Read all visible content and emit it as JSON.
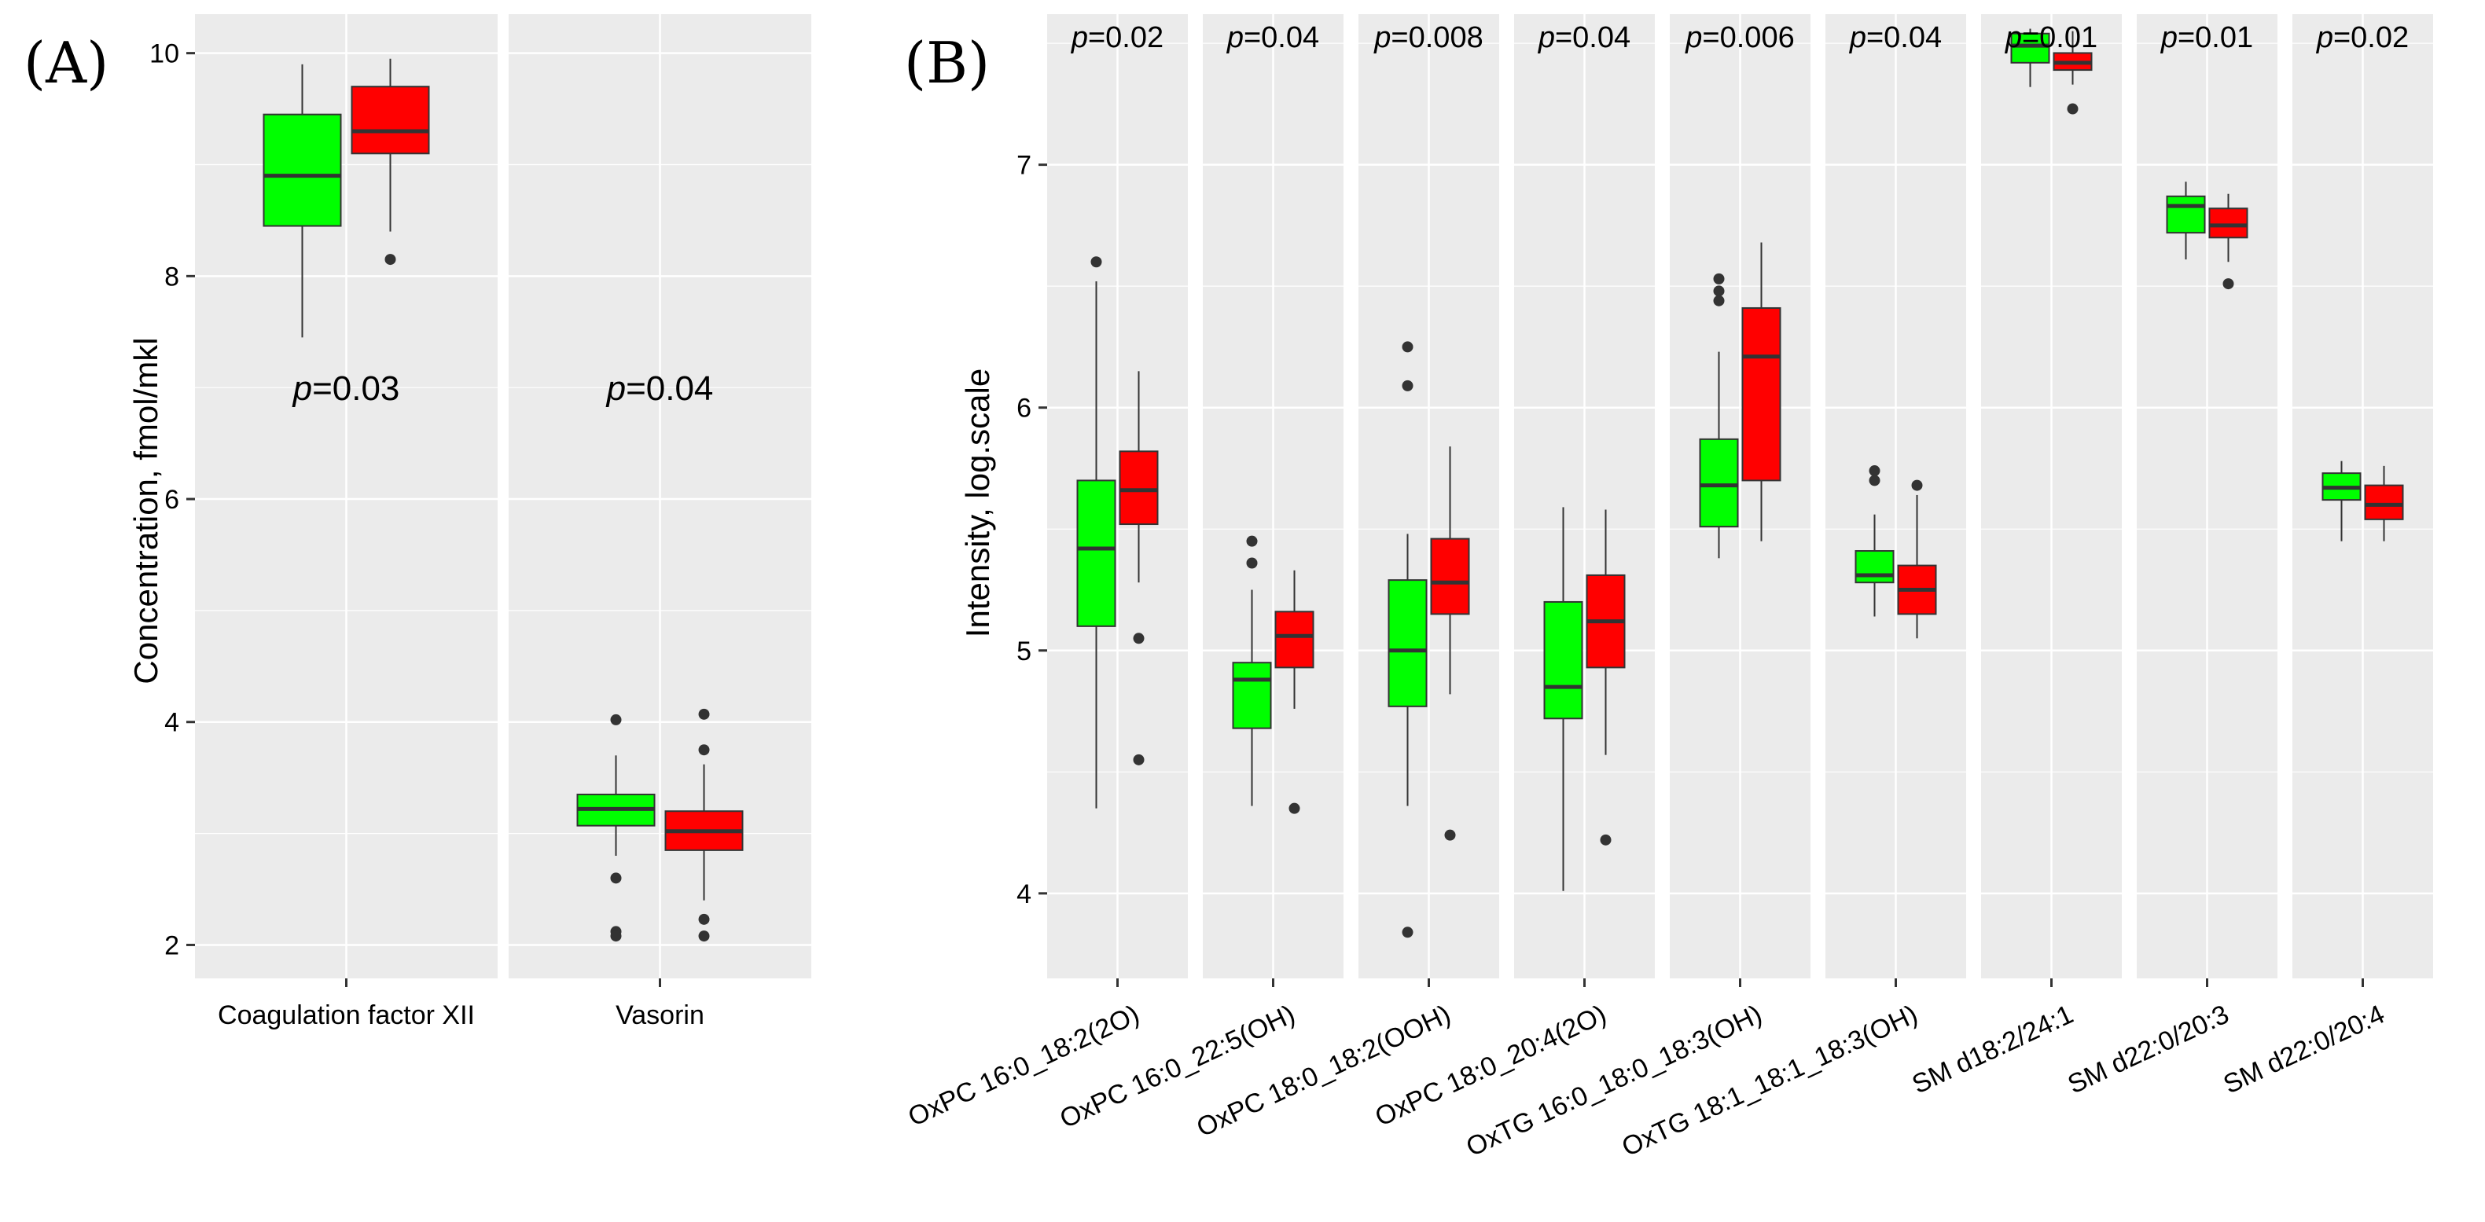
{
  "colors": {
    "panel_bg": "#EBEBEB",
    "grid": "#FFFFFF",
    "group1_fill": "#00FF00",
    "group2_fill": "#FF0000",
    "outline": "#333333"
  },
  "chart_data": [
    {
      "type": "boxplot",
      "panel_label": "(A)",
      "ylabel": "Concentration, fmol/mkl",
      "ylim": [
        1.7,
        10.35
      ],
      "yticks": [
        2,
        4,
        6,
        8,
        10
      ],
      "tick_labels": [
        "2",
        "4",
        "6",
        "8",
        "10"
      ],
      "grid": true,
      "facets": [
        {
          "category": "Coagulation factor XII",
          "p_label": "p",
          "p_value": "=0.03",
          "p_y": 7.0,
          "boxes": [
            {
              "color": "green",
              "lower_whisker": 7.45,
              "q1": 8.45,
              "median": 8.9,
              "q3": 9.45,
              "upper_whisker": 9.9,
              "outliers": []
            },
            {
              "color": "red",
              "lower_whisker": 8.4,
              "q1": 9.1,
              "median": 9.3,
              "q3": 9.7,
              "upper_whisker": 9.95,
              "outliers": [
                8.15
              ]
            }
          ]
        },
        {
          "category": "Vasorin",
          "p_label": "p",
          "p_value": "=0.04",
          "p_y": 7.0,
          "boxes": [
            {
              "color": "green",
              "lower_whisker": 2.8,
              "q1": 3.07,
              "median": 3.22,
              "q3": 3.35,
              "upper_whisker": 3.7,
              "outliers": [
                4.02,
                2.6,
                2.12,
                2.08
              ]
            },
            {
              "color": "red",
              "lower_whisker": 2.4,
              "q1": 2.85,
              "median": 3.02,
              "q3": 3.2,
              "upper_whisker": 3.62,
              "outliers": [
                4.07,
                3.75,
                2.23,
                2.08
              ]
            }
          ]
        }
      ]
    },
    {
      "type": "boxplot",
      "panel_label": "(B)",
      "ylabel": "Intensity, log.scale",
      "ylim": [
        3.65,
        7.62
      ],
      "yticks": [
        4,
        5,
        6,
        7
      ],
      "tick_labels": [
        "4",
        "5",
        "6",
        "7"
      ],
      "grid": true,
      "facets": [
        {
          "category": "OxPC 16:0_18:2(2O)",
          "p_label": "p",
          "p_value": "=0.02",
          "boxes": [
            {
              "color": "green",
              "lower_whisker": 4.35,
              "q1": 5.1,
              "median": 5.42,
              "q3": 5.7,
              "upper_whisker": 6.52,
              "outliers": [
                6.6
              ]
            },
            {
              "color": "red",
              "lower_whisker": 5.28,
              "q1": 5.52,
              "median": 5.66,
              "q3": 5.82,
              "upper_whisker": 6.15,
              "outliers": [
                5.05,
                4.55
              ]
            }
          ]
        },
        {
          "category": "OxPC 16:0_22:5(OH)",
          "p_label": "p",
          "p_value": "=0.04",
          "boxes": [
            {
              "color": "green",
              "lower_whisker": 4.36,
              "q1": 4.68,
              "median": 4.88,
              "q3": 4.95,
              "upper_whisker": 5.25,
              "outliers": [
                5.45,
                5.36
              ]
            },
            {
              "color": "red",
              "lower_whisker": 4.76,
              "q1": 4.93,
              "median": 5.06,
              "q3": 5.16,
              "upper_whisker": 5.33,
              "outliers": [
                4.35
              ]
            }
          ]
        },
        {
          "category": "OxPC 18:0_18:2(OOH)",
          "p_label": "p",
          "p_value": "=0.008",
          "boxes": [
            {
              "color": "green",
              "lower_whisker": 4.36,
              "q1": 4.77,
              "median": 5.0,
              "q3": 5.29,
              "upper_whisker": 5.48,
              "outliers": [
                6.25,
                6.09,
                3.84
              ]
            },
            {
              "color": "red",
              "lower_whisker": 4.82,
              "q1": 5.15,
              "median": 5.28,
              "q3": 5.46,
              "upper_whisker": 5.84,
              "outliers": [
                4.24
              ]
            }
          ]
        },
        {
          "category": "OxPC 18:0_20:4(2O)",
          "p_label": "p",
          "p_value": "=0.04",
          "boxes": [
            {
              "color": "green",
              "lower_whisker": 4.01,
              "q1": 4.72,
              "median": 4.85,
              "q3": 5.2,
              "upper_whisker": 5.59,
              "outliers": []
            },
            {
              "color": "red",
              "lower_whisker": 4.57,
              "q1": 4.93,
              "median": 5.12,
              "q3": 5.31,
              "upper_whisker": 5.58,
              "outliers": [
                4.22
              ]
            }
          ]
        },
        {
          "category": "OxTG 16:0_18:0_18:3(OH)",
          "p_label": "p",
          "p_value": "=0.006",
          "boxes": [
            {
              "color": "green",
              "lower_whisker": 5.38,
              "q1": 5.51,
              "median": 5.68,
              "q3": 5.87,
              "upper_whisker": 6.23,
              "outliers": [
                6.53,
                6.48,
                6.44
              ]
            },
            {
              "color": "red",
              "lower_whisker": 5.45,
              "q1": 5.7,
              "median": 6.21,
              "q3": 6.41,
              "upper_whisker": 6.68,
              "outliers": []
            }
          ]
        },
        {
          "category": "OxTG 18:1_18:1_18:3(OH)",
          "p_label": "p",
          "p_value": "=0.04",
          "boxes": [
            {
              "color": "green",
              "lower_whisker": 5.14,
              "q1": 5.28,
              "median": 5.31,
              "q3": 5.41,
              "upper_whisker": 5.56,
              "outliers": [
                5.74,
                5.7
              ]
            },
            {
              "color": "red",
              "lower_whisker": 5.05,
              "q1": 5.15,
              "median": 5.25,
              "q3": 5.35,
              "upper_whisker": 5.64,
              "outliers": [
                5.68
              ]
            }
          ]
        },
        {
          "category": "SM d18:2/24:1",
          "p_label": "p",
          "p_value": "=0.01",
          "boxes": [
            {
              "color": "green",
              "lower_whisker": 7.32,
              "q1": 7.42,
              "median": 7.49,
              "q3": 7.54,
              "upper_whisker": 7.56,
              "outliers": []
            },
            {
              "color": "red",
              "lower_whisker": 7.33,
              "q1": 7.39,
              "median": 7.42,
              "q3": 7.46,
              "upper_whisker": 7.55,
              "outliers": [
                7.23
              ]
            }
          ]
        },
        {
          "category": "SM d22:0/20:3",
          "p_label": "p",
          "p_value": "=0.01",
          "boxes": [
            {
              "color": "green",
              "lower_whisker": 6.61,
              "q1": 6.72,
              "median": 6.83,
              "q3": 6.87,
              "upper_whisker": 6.93,
              "outliers": []
            },
            {
              "color": "red",
              "lower_whisker": 6.6,
              "q1": 6.7,
              "median": 6.75,
              "q3": 6.82,
              "upper_whisker": 6.88,
              "outliers": [
                6.51
              ]
            }
          ]
        },
        {
          "category": "SM d22:0/20:4",
          "p_label": "p",
          "p_value": "=0.02",
          "boxes": [
            {
              "color": "green",
              "lower_whisker": 5.45,
              "q1": 5.62,
              "median": 5.67,
              "q3": 5.73,
              "upper_whisker": 5.78,
              "outliers": []
            },
            {
              "color": "red",
              "lower_whisker": 5.45,
              "q1": 5.54,
              "median": 5.6,
              "q3": 5.68,
              "upper_whisker": 5.76,
              "outliers": []
            }
          ]
        }
      ]
    }
  ]
}
